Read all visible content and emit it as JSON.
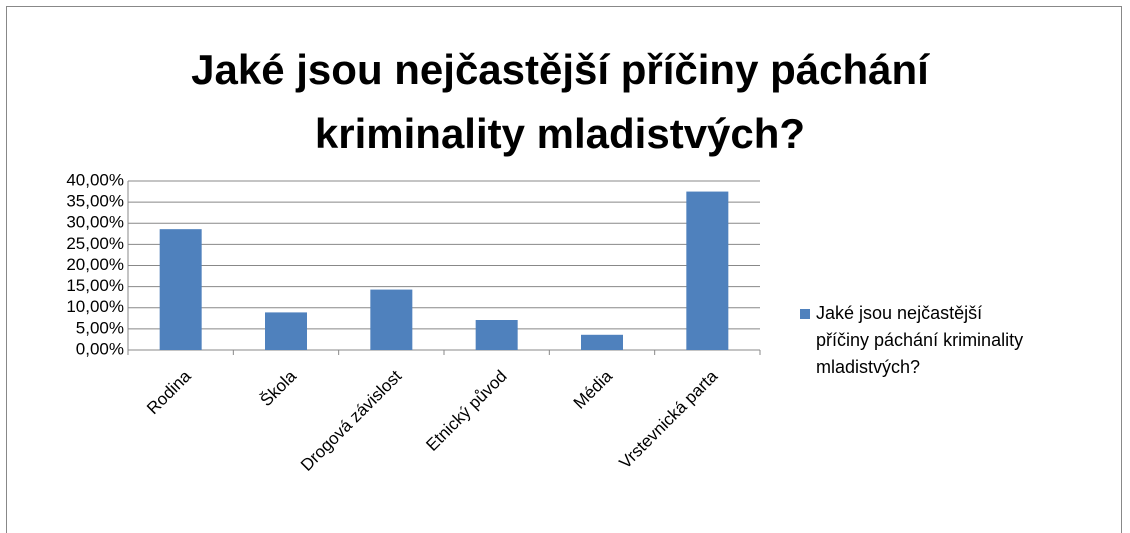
{
  "chart_data": {
    "type": "bar",
    "title": "Jaké jsou nejčastější příčiny páchání kriminality mladistvých?",
    "categories": [
      "Rodina",
      "Škola",
      "Drogová závislost",
      "Etnický původ",
      "Média",
      "Vrstevnická parta"
    ],
    "series": [
      {
        "name": "Jaké jsou nejčastější příčiny páchání kriminality mladistvých?",
        "color": "#4f81bd",
        "values": [
          28.6,
          8.9,
          14.3,
          7.1,
          3.6,
          37.5
        ]
      }
    ],
    "ylim": [
      0,
      40
    ],
    "yticks": [
      {
        "value": 0,
        "label": "0,00%"
      },
      {
        "value": 5,
        "label": "5,00%"
      },
      {
        "value": 10,
        "label": "10,00%"
      },
      {
        "value": 15,
        "label": "15,00%"
      },
      {
        "value": 20,
        "label": "20,00%"
      },
      {
        "value": 25,
        "label": "25,00%"
      },
      {
        "value": 30,
        "label": "30,00%"
      },
      {
        "value": 35,
        "label": "35,00%"
      },
      {
        "value": 40,
        "label": "40,00%"
      }
    ],
    "grid": true,
    "legend": "right"
  }
}
